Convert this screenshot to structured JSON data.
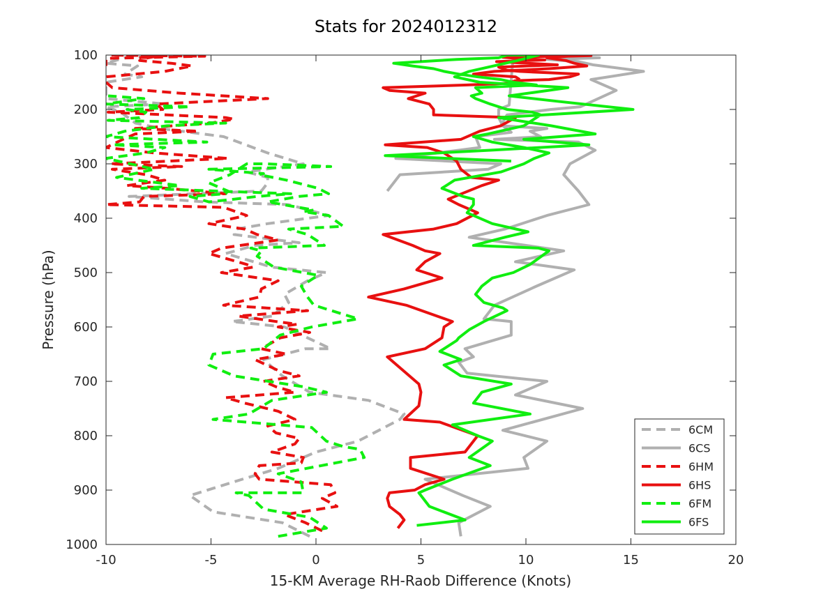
{
  "chart_data": {
    "type": "line",
    "title": "Stats for 2024012312",
    "xlabel": "15-KM Average RH-Raob Difference (Knots)",
    "ylabel": "Pressure (hPa)",
    "xlim": [
      -10,
      20
    ],
    "ylim": [
      100,
      1000
    ],
    "y_reversed": true,
    "xticks": [
      "-10",
      "-5",
      "0",
      "5",
      "10",
      "15",
      "20"
    ],
    "yticks": [
      "100",
      "200",
      "300",
      "400",
      "500",
      "600",
      "700",
      "800",
      "900",
      "1000"
    ],
    "grid": false,
    "legend_position": "bottom-right",
    "series": [
      {
        "name": "6CM",
        "color": "#b0b0b0",
        "style": "dashed",
        "x": [
          -0.3,
          -1.6,
          -4.9,
          -6,
          -3.5,
          -1.8,
          0,
          2,
          4,
          4.2,
          2.5,
          -0.3,
          -1.6,
          -2.5,
          -1.5,
          -0.5,
          0.7,
          -1.5,
          -4,
          -2.1,
          -1.3,
          -1.5,
          -0.4,
          0.5,
          -2.1,
          -4.3,
          -2.9,
          -0.8,
          -3.9,
          -3.8,
          -2.3,
          0.6,
          -1.3,
          -5.3,
          -8.9,
          -2.6,
          -2.3,
          -2.3,
          -3.3,
          -0.6,
          -2.3,
          -4.4,
          -7.4,
          -8.6,
          -9.3,
          -10,
          -7.2,
          -10,
          -10,
          -10,
          -8.3,
          -9.1,
          -8.5,
          -10,
          -9.1,
          -5.6
        ],
        "y": [
          985,
          960,
          940,
          910,
          880,
          860,
          830,
          810,
          770,
          760,
          735,
          720,
          690,
          660,
          650,
          640,
          640,
          600,
          590,
          580,
          555,
          540,
          515,
          500,
          490,
          465,
          450,
          445,
          430,
          420,
          410,
          395,
          375,
          370,
          360,
          350,
          335,
          325,
          315,
          300,
          280,
          250,
          235,
          225,
          205,
          195,
          190,
          180,
          170,
          150,
          140,
          135,
          120,
          115,
          105,
          100
        ]
      },
      {
        "name": "6CS",
        "color": "#b0b0b0",
        "style": "solid",
        "x": [
          6.9,
          6.8,
          8.3,
          7,
          5.2,
          10.1,
          9.9,
          11,
          8.9,
          12.7,
          9.5,
          11,
          7.2,
          6.8,
          7.5,
          7.1,
          9.3,
          9.3,
          8,
          8.5,
          10.5,
          12.3,
          9.5,
          11.8,
          7.3,
          9,
          11,
          13,
          12.5,
          11.8,
          12.1,
          13.3,
          12.5,
          8.5,
          10.7,
          10.2,
          11,
          8.8,
          9.1,
          11.2,
          12.6,
          14.3,
          13.1,
          15.6,
          13.2,
          12.5,
          11,
          13.5,
          9.4,
          9.2,
          8.7,
          8.7,
          8.9,
          9.3,
          7.6,
          7.8,
          3.8,
          8.8,
          8.2,
          4,
          3.4
        ],
        "y": [
          985,
          960,
          930,
          910,
          880,
          860,
          840,
          810,
          790,
          750,
          725,
          700,
          685,
          665,
          655,
          640,
          615,
          590,
          585,
          560,
          525,
          495,
          480,
          460,
          435,
          420,
          395,
          375,
          350,
          320,
          300,
          275,
          260,
          255,
          250,
          240,
          235,
          230,
          210,
          200,
          195,
          165,
          145,
          130,
          118,
          112,
          108,
          105,
          100,
          192,
          200,
          215,
          230,
          242,
          250,
          270,
          290,
          300,
          310,
          320,
          350
        ]
      },
      {
        "name": "6HM",
        "color": "#e81010",
        "style": "dashed",
        "x": [
          0.3,
          -0.5,
          -1.5,
          1,
          0.3,
          0.9,
          0.7,
          -2.7,
          -2.9,
          -2.7,
          -0.7,
          -0.6,
          -2.1,
          -1.0,
          -0.8,
          -1.9,
          -2.3,
          -1.0,
          -1.8,
          -3.4,
          -4.3,
          -1,
          -1.9,
          -2.5,
          -0.8,
          -1.8,
          -2.9,
          -1.4,
          -2.6,
          -1.7,
          -0.3,
          -1.8,
          -0.9,
          -1.9,
          -3.7,
          -0.4,
          -4.4,
          -2.7,
          -2.6,
          -1.8,
          -4.5,
          -3.0,
          -3.3,
          -5.1,
          -4.5,
          -1.8,
          -2.8,
          -3.4,
          -5.1,
          -3.3,
          -4.4,
          -10,
          -8.4,
          -8.2,
          -4.3,
          -7.1,
          -9,
          -7.2,
          -8.1,
          -9.7,
          -6.4,
          -9.8,
          -4.2,
          -7.7,
          -10,
          -9.2,
          -8.6,
          -5.6,
          -8.6,
          -5.0,
          -3.9,
          -4.3,
          -9.9,
          -7.3,
          -7.6,
          -2.3,
          -6.5,
          -9.7,
          -10,
          -10,
          -7.2,
          -5.9,
          -6.9,
          -8.4,
          -8.0,
          -7.3,
          -9.8,
          -5.3,
          -10,
          -10,
          -10
        ],
        "y": [
          975,
          960,
          945,
          930,
          915,
          905,
          890,
          880,
          870,
          855,
          850,
          840,
          830,
          815,
          805,
          795,
          782,
          770,
          755,
          740,
          730,
          720,
          710,
          700,
          690,
          680,
          660,
          650,
          640,
          620,
          610,
          600,
          595,
          590,
          580,
          570,
          560,
          545,
          530,
          515,
          500,
          490,
          485,
          465,
          455,
          440,
          430,
          420,
          410,
          395,
          380,
          375,
          370,
          360,
          355,
          345,
          340,
          330,
          320,
          310,
          305,
          300,
          290,
          280,
          270,
          255,
          245,
          240,
          235,
          225,
          218,
          215,
          205,
          200,
          190,
          180,
          170,
          160,
          150,
          140,
          130,
          120,
          115,
          110,
          105,
          100,
          100,
          102,
          106,
          112,
          120
        ]
      },
      {
        "name": "6HS",
        "color": "#e81010",
        "style": "solid",
        "x": [
          3.9,
          4.2,
          4,
          3.5,
          3.4,
          3.5,
          4.7,
          5.2,
          6.1,
          4.5,
          4.5,
          7.1,
          7.7,
          5.9,
          4.2,
          4.9,
          5,
          4.9,
          3.4,
          5.2,
          6,
          6.1,
          6.5,
          4.3,
          2.5,
          4.2,
          6,
          4.8,
          5.2,
          5.9,
          5.2,
          4.6,
          3.2,
          5.6,
          6.7,
          7.7,
          6.8,
          6.3,
          7.9,
          8.7,
          7.4,
          6.9,
          6.7,
          6.1,
          5.3,
          3.3,
          6.9,
          7.8,
          8.8,
          9.5,
          5.6,
          5.6,
          5.4,
          4.4,
          5.2,
          3.5,
          3.2,
          7.2,
          9.1,
          9.5,
          11.1,
          12.1,
          12.5,
          9.7,
          9.1,
          8.7,
          11.5,
          8.6,
          10.9,
          9.6,
          8.9,
          10.4,
          11.8,
          12.1,
          12.5,
          13.1,
          12,
          11,
          11.9,
          12.3,
          12.9,
          11.1,
          8.5,
          7.5,
          9.5,
          9.7
        ],
        "y": [
          970,
          955,
          945,
          930,
          915,
          905,
          900,
          890,
          880,
          860,
          840,
          830,
          800,
          775,
          770,
          745,
          720,
          705,
          655,
          640,
          620,
          600,
          590,
          560,
          545,
          530,
          510,
          495,
          480,
          465,
          460,
          450,
          430,
          420,
          410,
          390,
          375,
          365,
          340,
          330,
          325,
          310,
          295,
          280,
          270,
          265,
          255,
          240,
          230,
          215,
          210,
          200,
          190,
          180,
          170,
          165,
          160,
          155,
          152,
          147,
          145,
          140,
          135,
          130,
          128,
          122,
          118,
          112,
          109,
          106,
          104,
          103,
          102,
          100,
          100,
          101,
          102,
          105,
          110,
          115,
          120,
          125,
          130,
          135,
          140,
          145
        ]
      },
      {
        "name": "6FM",
        "color": "#10ee10",
        "style": "dashed",
        "x": [
          -1.8,
          0.5,
          -0.3,
          -2.5,
          -3.2,
          -3.8,
          -0.6,
          -0.7,
          -1.8,
          2.3,
          2.1,
          1.3,
          0.5,
          -0.2,
          -4.9,
          -3.2,
          -2.1,
          0.5,
          -0.6,
          -3.9,
          -5.1,
          -4.9,
          -2.5,
          -1.7,
          -0.2,
          2,
          -0.1,
          -0.4,
          -0.7,
          0.1,
          -2,
          -2.8,
          -2.6,
          -3.1,
          0.4,
          -0.4,
          -1.3,
          1.3,
          0.6,
          -0.6,
          -0.1,
          -2.3,
          -0.8,
          0.6,
          0.1,
          -1.4,
          -2.7,
          -2.5,
          -5.1,
          0.7,
          -2.4,
          -3.3,
          -4.1,
          -5.1,
          -4.2,
          -4.3,
          -6.0,
          -5.1,
          -3.9,
          -2.8,
          -1.2,
          -8.3,
          -6.5,
          -9.5,
          -7.7,
          -10,
          -8.1,
          -7.2,
          -9.7,
          -5.2,
          -10,
          -9.1,
          -7.1,
          -4.3,
          -9.9,
          -8.4,
          -8.1,
          -9.0,
          -6.0,
          -10,
          -8.2,
          -9.9
        ],
        "y": [
          985,
          970,
          950,
          935,
          910,
          905,
          905,
          885,
          870,
          840,
          825,
          820,
          810,
          785,
          770,
          760,
          735,
          720,
          710,
          690,
          670,
          650,
          640,
          615,
          600,
          585,
          560,
          545,
          525,
          505,
          490,
          470,
          460,
          455,
          450,
          430,
          420,
          415,
          395,
          388,
          385,
          370,
          360,
          355,
          345,
          330,
          320,
          318,
          310,
          305,
          300,
          300,
          320,
          335,
          350,
          355,
          360,
          370,
          365,
          360,
          355,
          345,
          340,
          325,
          310,
          290,
          280,
          270,
          265,
          260,
          250,
          240,
          230,
          225,
          220,
          215,
          205,
          200,
          195,
          190,
          180,
          175
        ]
      },
      {
        "name": "6FS",
        "color": "#10ee10",
        "style": "solid",
        "x": [
          4.8,
          7.1,
          5.4,
          4.9,
          5.2,
          6.5,
          8.3,
          7.3,
          8.4,
          7.7,
          6.5,
          10.2,
          7.5,
          7.9,
          9.3,
          6.9,
          6.1,
          6.9,
          5.9,
          6.7,
          6.8,
          7.3,
          8,
          9.1,
          8.9,
          8.0,
          7.6,
          7.9,
          8.4,
          9.4,
          10.2,
          11.1,
          10.6,
          7.5,
          9.0,
          10.1,
          8.4,
          7.2,
          7.5,
          7.5,
          7.0,
          6.0,
          6.6,
          8.8,
          9.9,
          10.4,
          11.1,
          9.9,
          8.4,
          7.5,
          8.2,
          9.9,
          10.7,
          10.3,
          9.1,
          8.3,
          7.6,
          7.4,
          7.9,
          7.6,
          10.5,
          9.4,
          8.8,
          7.7,
          6.8,
          6.1,
          5.6,
          4.6,
          3.7,
          6.7,
          8.7,
          9.1,
          10.6,
          10.4,
          9.6,
          7.3,
          6.6,
          7.8,
          12,
          9.2,
          11.5,
          15.1,
          8.7,
          11.2,
          13.3,
          9.9,
          13.0,
          8.3,
          3.3,
          9.3
        ],
        "y": [
          965,
          955,
          930,
          905,
          900,
          880,
          855,
          840,
          810,
          800,
          780,
          760,
          740,
          720,
          705,
          690,
          670,
          660,
          645,
          625,
          620,
          605,
          590,
          570,
          565,
          555,
          540,
          525,
          510,
          500,
          485,
          460,
          455,
          450,
          435,
          425,
          410,
          390,
          375,
          365,
          360,
          345,
          330,
          315,
          300,
          290,
          280,
          270,
          260,
          250,
          245,
          230,
          210,
          205,
          200,
          190,
          180,
          175,
          170,
          160,
          155,
          150,
          145,
          140,
          135,
          130,
          125,
          120,
          115,
          108,
          105,
          100,
          100,
          102,
          110,
          130,
          140,
          150,
          160,
          175,
          185,
          200,
          215,
          230,
          245,
          255,
          265,
          275,
          285,
          295
        ]
      }
    ]
  }
}
